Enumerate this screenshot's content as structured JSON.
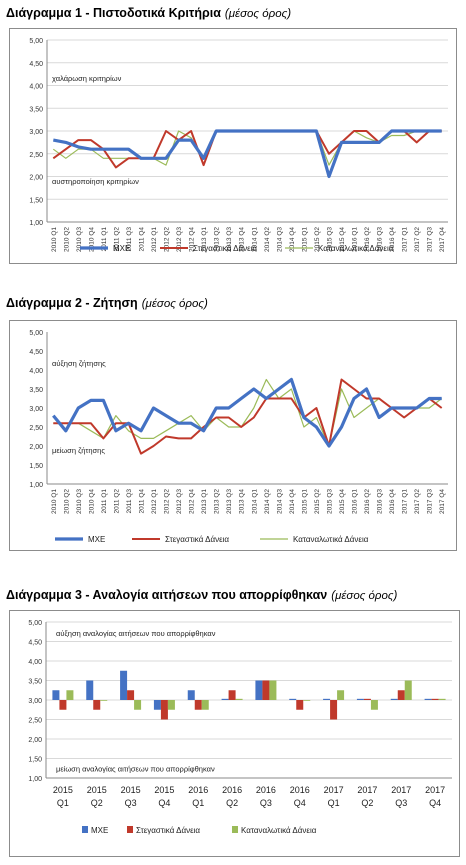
{
  "sections": [
    {
      "title": "Διάγραμμα 1 - Πιστοδοτικά Κριτήρια",
      "subtitle": "(μέσος όρος)"
    },
    {
      "title": "Διάγραμμα 2 - Ζήτηση",
      "subtitle": "(μέσος όρος)"
    },
    {
      "title": "Διάγραμμα 3 - Αναλογία αιτήσεων που απορρίφθηκαν",
      "subtitle": "(μέσος όρος)"
    }
  ],
  "colors": {
    "mxe": "#4472c4",
    "mortgage": "#c0392b",
    "consumer": "#9bbb59",
    "grid": "#d9d9d9",
    "axis": "#888888"
  },
  "chart_data": [
    {
      "type": "line",
      "ylim": [
        1.0,
        5.0
      ],
      "yticks": [
        "1,00",
        "1,50",
        "2,00",
        "2,50",
        "3,00",
        "3,50",
        "4,00",
        "4,50",
        "5,00"
      ],
      "grid": true,
      "legend_position": "bottom",
      "annotations": {
        "top": "χαλάρωση κριτηρίων",
        "bottom": "αυστηροποίηση κριτηρίων"
      },
      "categories": [
        "2010 Q1",
        "2010 Q2",
        "2010 Q3",
        "2010 Q4",
        "2011 Q1",
        "2011 Q2",
        "2011 Q3",
        "2011 Q4",
        "2012 Q1",
        "2012 Q2",
        "2012 Q3",
        "2012 Q4",
        "2013 Q1",
        "2013 Q2",
        "2013 Q3",
        "2013 Q4",
        "2014 Q1",
        "2014 Q2",
        "2014 Q3",
        "2014 Q4",
        "2015 Q1",
        "2015 Q2",
        "2015 Q3",
        "2015 Q4",
        "2016 Q1",
        "2016 Q2",
        "2016 Q3",
        "2016 Q4",
        "2017 Q1",
        "2017 Q2",
        "2017 Q3",
        "2017 Q4"
      ],
      "series": [
        {
          "name": "ΜΧΕ",
          "color": "#4472c4",
          "width": 3.2,
          "values": [
            2.8,
            2.75,
            2.65,
            2.6,
            2.6,
            2.6,
            2.6,
            2.4,
            2.4,
            2.4,
            2.8,
            2.8,
            2.4,
            3.0,
            3.0,
            3.0,
            3.0,
            3.0,
            3.0,
            3.0,
            3.0,
            3.0,
            2.0,
            2.75,
            2.75,
            2.75,
            2.75,
            3.0,
            3.0,
            3.0,
            3.0,
            3.0
          ]
        },
        {
          "name": "Στεγαστικά Δάνεια",
          "color": "#c0392b",
          "width": 2,
          "values": [
            2.4,
            2.6,
            2.8,
            2.8,
            2.6,
            2.2,
            2.4,
            2.4,
            2.4,
            3.0,
            2.8,
            3.0,
            2.25,
            3.0,
            3.0,
            3.0,
            3.0,
            3.0,
            3.0,
            3.0,
            3.0,
            3.0,
            2.5,
            2.75,
            3.0,
            3.0,
            2.75,
            3.0,
            3.0,
            2.75,
            3.0,
            3.0
          ]
        },
        {
          "name": "Καταναλωτικά Δάνεια",
          "color": "#9bbb59",
          "width": 1.2,
          "values": [
            2.6,
            2.4,
            2.6,
            2.6,
            2.4,
            2.4,
            2.4,
            2.4,
            2.4,
            2.25,
            3.0,
            2.85,
            2.4,
            3.0,
            3.0,
            3.0,
            3.0,
            3.0,
            3.0,
            3.0,
            3.0,
            3.0,
            2.25,
            2.75,
            3.0,
            2.85,
            2.75,
            2.9,
            2.9,
            3.0,
            3.0,
            3.0
          ]
        }
      ]
    },
    {
      "type": "line",
      "ylim": [
        1.0,
        5.0
      ],
      "yticks": [
        "1,00",
        "1,50",
        "2,00",
        "2,50",
        "3,00",
        "3,50",
        "4,00",
        "4,50",
        "5,00"
      ],
      "grid": false,
      "legend_position": "bottom",
      "annotations": {
        "top": "αύξηση ζήτησης",
        "bottom": "μείωση ζήτησης"
      },
      "categories": [
        "2010 Q1",
        "2010 Q2",
        "2010 Q3",
        "2010 Q4",
        "2011 Q1",
        "2011 Q2",
        "2011 Q3",
        "2011 Q4",
        "2012 Q1",
        "2012 Q2",
        "2012 Q3",
        "2012 Q4",
        "2013 Q1",
        "2013 Q2",
        "2013 Q3",
        "2013 Q4",
        "2014 Q1",
        "2014 Q2",
        "2014 Q3",
        "2014 Q4",
        "2015 Q1",
        "2015 Q2",
        "2015 Q3",
        "2015 Q4",
        "2016 Q1",
        "2016 Q2",
        "2016 Q3",
        "2016 Q4",
        "2017 Q1",
        "2017 Q2",
        "2017 Q3",
        "2017 Q4"
      ],
      "series": [
        {
          "name": "ΜΧΕ",
          "color": "#4472c4",
          "width": 3.2,
          "values": [
            2.8,
            2.4,
            3.0,
            3.2,
            3.2,
            2.4,
            2.6,
            2.4,
            3.0,
            2.8,
            2.6,
            2.6,
            2.4,
            3.0,
            3.0,
            3.25,
            3.5,
            3.25,
            3.5,
            3.75,
            2.75,
            2.5,
            2.0,
            2.5,
            3.25,
            3.5,
            2.75,
            3.0,
            3.0,
            3.0,
            3.25,
            3.25
          ]
        },
        {
          "name": "Στεγαστικά Δάνεια",
          "color": "#c0392b",
          "width": 2,
          "values": [
            2.6,
            2.6,
            2.6,
            2.6,
            2.2,
            2.6,
            2.6,
            1.8,
            2.0,
            2.25,
            2.2,
            2.2,
            2.5,
            2.75,
            2.75,
            2.5,
            2.75,
            3.25,
            3.25,
            3.25,
            2.75,
            3.0,
            2.0,
            3.75,
            3.5,
            3.25,
            3.25,
            3.0,
            2.75,
            3.0,
            3.25,
            3.0
          ]
        },
        {
          "name": "Καταναλωτικά Δάνεια",
          "color": "#9bbb59",
          "width": 1.2,
          "values": [
            2.6,
            2.6,
            2.6,
            2.4,
            2.2,
            2.8,
            2.4,
            2.2,
            2.2,
            2.4,
            2.6,
            2.8,
            2.4,
            2.75,
            2.5,
            2.5,
            3.0,
            3.75,
            3.25,
            3.5,
            2.5,
            2.75,
            2.0,
            3.5,
            2.75,
            3.0,
            3.25,
            3.0,
            2.75,
            3.0,
            3.0,
            3.25
          ]
        }
      ]
    },
    {
      "type": "bar",
      "ylim": [
        1.0,
        5.0
      ],
      "yticks": [
        "1,00",
        "1,50",
        "2,00",
        "2,50",
        "3,00",
        "3,50",
        "4,00",
        "4,50",
        "5,00"
      ],
      "grid": true,
      "legend_position": "bottom",
      "baseline": 3.0,
      "annotations": {
        "top": "αύξηση αναλογίας αιτήσεων που απορρίφθηκαν",
        "bottom": "μείωση αναλογίας αιτήσεων που απορρίφθηκαν"
      },
      "categories": [
        [
          "2015",
          "Q1"
        ],
        [
          "2015",
          "Q2"
        ],
        [
          "2015",
          "Q3"
        ],
        [
          "2015",
          "Q4"
        ],
        [
          "2016",
          "Q1"
        ],
        [
          "2016",
          "Q2"
        ],
        [
          "2016",
          "Q3"
        ],
        [
          "2016",
          "Q4"
        ],
        [
          "2017",
          "Q1"
        ],
        [
          "2017",
          "Q2"
        ],
        [
          "2017",
          "Q3"
        ],
        [
          "2017",
          "Q4"
        ]
      ],
      "series": [
        {
          "name": "ΜΧΕ",
          "color": "#4472c4",
          "values": [
            3.25,
            3.5,
            3.75,
            2.75,
            3.25,
            3.03,
            3.5,
            3.03,
            3.03,
            3.03,
            3.03,
            3.03
          ]
        },
        {
          "name": "Στεγαστικά Δάνεια",
          "color": "#c0392b",
          "values": [
            2.75,
            2.75,
            3.25,
            2.5,
            2.75,
            3.25,
            3.5,
            2.75,
            2.5,
            3.03,
            3.25,
            3.03
          ]
        },
        {
          "name": "Καταναλωτικά Δάνεια",
          "color": "#9bbb59",
          "values": [
            3.25,
            3.0,
            2.75,
            2.75,
            2.75,
            3.03,
            3.5,
            3.0,
            3.25,
            2.75,
            3.5,
            3.03
          ]
        }
      ]
    }
  ]
}
